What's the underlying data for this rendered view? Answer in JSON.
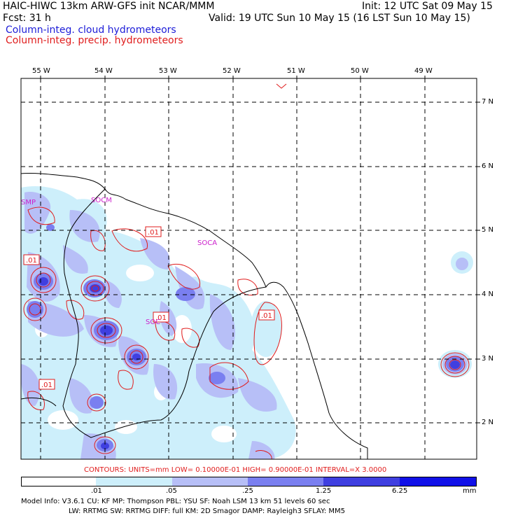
{
  "header": {
    "title": "HAIC-HIWC 13km ARW-GFS init   NCAR/MMM",
    "init": "Init: 12 UTC Sat 09 May 15",
    "fcst": "Fcst:   31 h",
    "valid": "Valid: 19 UTC Sun 10 May 15 (16 LST Sun 10 May 15)",
    "field1": "Column-integ. cloud hydrometeors",
    "field2": "Column-integ. precip. hydrometeors"
  },
  "map": {
    "lon_labels": [
      "55 W",
      "54 W",
      "53 W",
      "52 W",
      "51 W",
      "50 W",
      "49 W"
    ],
    "lat_labels": [
      "7 N",
      "6 N",
      "5 N",
      "4 N",
      "3 N",
      "2 N"
    ],
    "stations": [
      "SMP",
      "SOCM",
      "SOCA",
      "SOC"
    ],
    "contour_labels": [
      ".01",
      ".01",
      ".01",
      ".01",
      ".01"
    ],
    "colors": {
      "lightest": "#cdeffb",
      "light": "#b7bff7",
      "medium": "#7a7ff0",
      "dark": "#3f3fe0",
      "darkest": "#1010e8",
      "contour": "#e01c1c",
      "station": "#cc22cc"
    }
  },
  "contour_info": "CONTOURS:  UNITS=mm  LOW= 0.10000E-01  HIGH= 0.90000E-01  INTERVAL=X  3.0000",
  "colorbar": {
    "ticks": [
      ".01",
      ".05",
      ".25",
      "1.25",
      "6.25"
    ],
    "units": "mm"
  },
  "model_info": {
    "line1": "Model Info: V3.6.1    CU: KF      MP: Thompson    PBL: YSU      SF: Noah LSM     13 km    51 levels   60 sec",
    "line2": "LW: RRTMG    SW: RRTMG   DIFF: full    KM: 2D Smagor DAMP: Rayleigh3   SFLAY: MM5"
  }
}
